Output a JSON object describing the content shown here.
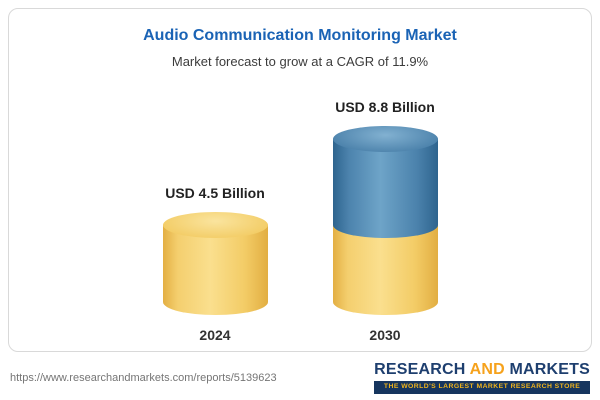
{
  "card": {
    "title": "Audio Communication Monitoring Market",
    "subtitle": "Market forecast to grow at a CAGR of 11.9%"
  },
  "chart_data": {
    "type": "bar",
    "subtype": "3d-cylinder",
    "title": "Audio Communication Monitoring Market",
    "subtitle": "Market forecast to grow at a CAGR of 11.9%",
    "cagr": "11.9%",
    "unit": "USD Billion",
    "categories": [
      "2024",
      "2030"
    ],
    "values": [
      4.5,
      8.8
    ],
    "value_labels": [
      "USD 4.5 Billion",
      "USD 8.8 Billion"
    ],
    "ylim": [
      0,
      10
    ],
    "grid": false,
    "legend": false,
    "colors": {
      "bar_yellow": "#f3cd67",
      "bar_blue": "#4c83ad",
      "title_blue": "#1a63b5"
    }
  },
  "footer": {
    "url": "https://www.researchandmarkets.com/reports/5139623",
    "logo": {
      "part1": "RESEARCH ",
      "part2": "AND",
      "part3": " MARKETS",
      "tagline": "THE WORLD'S LARGEST MARKET RESEARCH STORE"
    }
  }
}
